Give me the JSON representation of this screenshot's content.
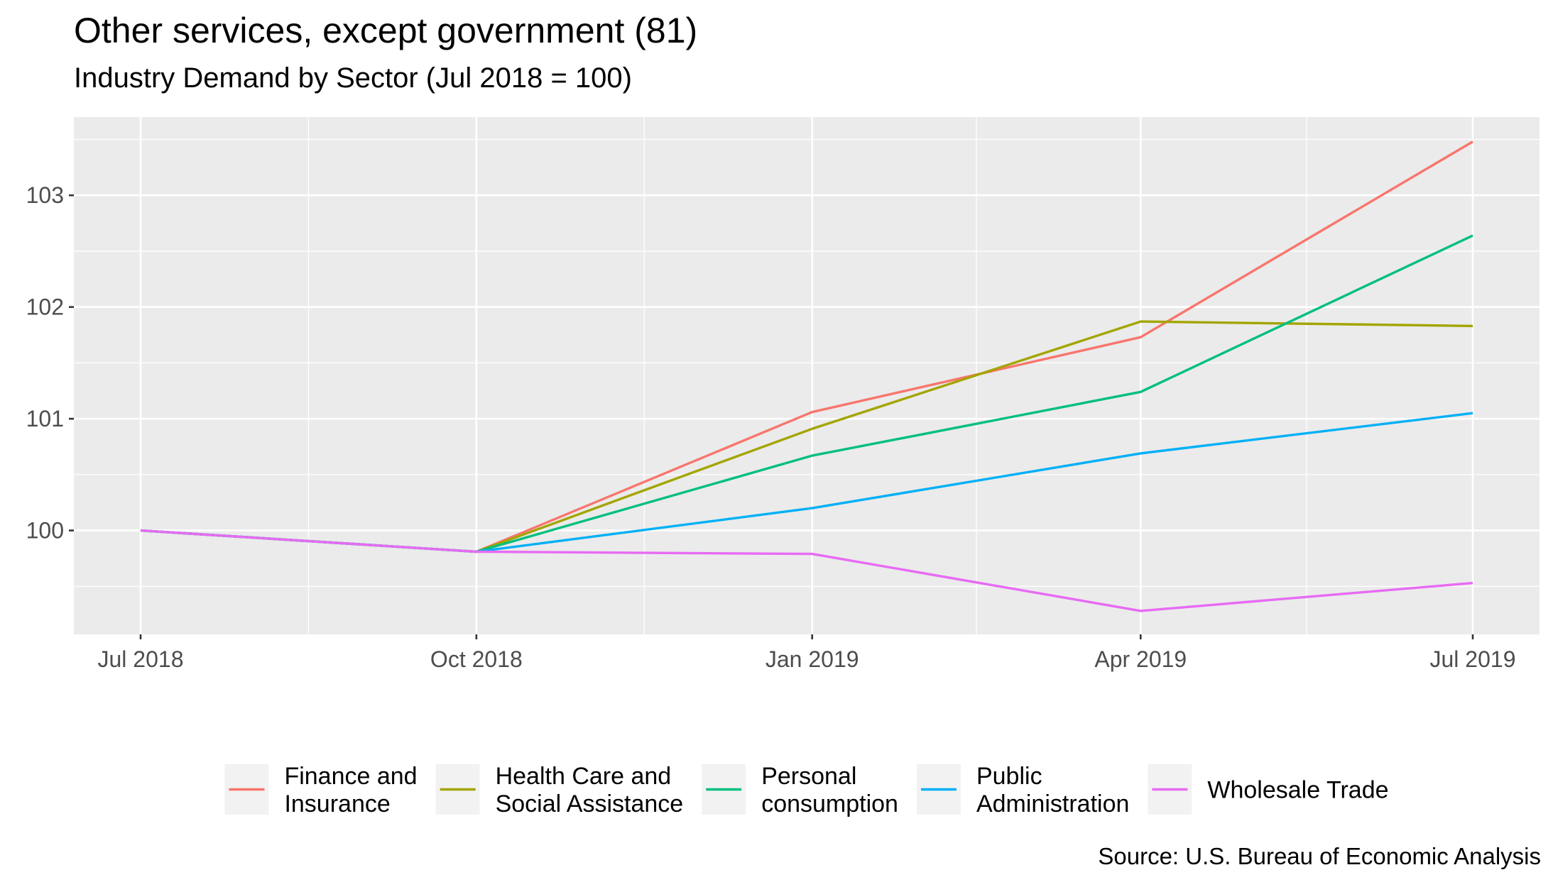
{
  "title": "Other services, except government (81)",
  "subtitle": "Industry Demand by Sector (Jul 2018 = 100)",
  "caption": "Source: U.S. Bureau of Economic Analysis",
  "chart_data": {
    "type": "line",
    "title": "Other services, except government (81)",
    "subtitle": "Industry Demand by Sector (Jul 2018 = 100)",
    "xlabel": "",
    "ylabel": "",
    "x": [
      "2018-07-01",
      "2018-10-01",
      "2019-01-01",
      "2019-04-01",
      "2019-07-01"
    ],
    "x_ticks": [
      "Jul 2018",
      "Oct 2018",
      "Jan 2019",
      "Apr 2019",
      "Jul 2019"
    ],
    "y_ticks": [
      100,
      101,
      102,
      103
    ],
    "ylim": [
      99.07,
      103.7
    ],
    "grid": true,
    "legend_position": "bottom",
    "series": [
      {
        "name": "Finance and Insurance",
        "legend_lines": [
          "Finance and",
          "Insurance"
        ],
        "color": "#F8766D",
        "values": [
          100.0,
          99.81,
          101.06,
          101.73,
          103.48
        ]
      },
      {
        "name": "Health Care and Social Assistance",
        "legend_lines": [
          "Health Care and",
          "Social Assistance"
        ],
        "color": "#A3A500",
        "values": [
          100.0,
          99.81,
          100.91,
          101.87,
          101.83
        ]
      },
      {
        "name": "Personal consumption",
        "legend_lines": [
          "Personal",
          "consumption"
        ],
        "color": "#00BF7D",
        "values": [
          100.0,
          99.81,
          100.67,
          101.24,
          102.64
        ]
      },
      {
        "name": "Public Administration",
        "legend_lines": [
          "Public",
          "Administration"
        ],
        "color": "#00B0F6",
        "values": [
          100.0,
          99.81,
          100.2,
          100.69,
          101.05
        ]
      },
      {
        "name": "Wholesale Trade",
        "legend_lines": [
          "Wholesale Trade"
        ],
        "color": "#E76BF3",
        "values": [
          100.0,
          99.81,
          99.79,
          99.28,
          99.53
        ]
      }
    ]
  }
}
